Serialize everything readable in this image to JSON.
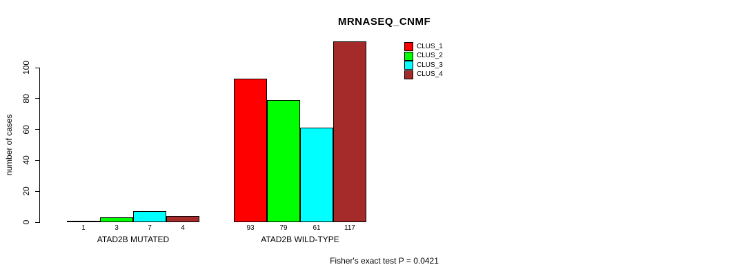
{
  "title": "MRNASEQ_CNMF",
  "subtitle": "Fisher's exact test P = 0.0421",
  "ylabel": "number of cases",
  "chart_data": {
    "type": "bar",
    "title": "MRNASEQ_CNMF",
    "xlabel": "",
    "ylabel": "number of cases",
    "categories": [
      "ATAD2B MUTATED",
      "ATAD2B WILD-TYPE"
    ],
    "series": [
      {
        "name": "CLUS_1",
        "color": "#ff0000",
        "values": [
          1,
          93
        ]
      },
      {
        "name": "CLUS_2",
        "color": "#00ff00",
        "values": [
          3,
          79
        ]
      },
      {
        "name": "CLUS_3",
        "color": "#00ffff",
        "values": [
          7,
          61
        ]
      },
      {
        "name": "CLUS_4",
        "color": "#a52a2a",
        "values": [
          4,
          117
        ]
      }
    ],
    "yticks": [
      0,
      20,
      40,
      60,
      80,
      100
    ],
    "ylim": [
      0,
      100
    ],
    "grid": false,
    "bar_value_labels": true,
    "legend_position": "inside-top-right",
    "annotation": "Fisher's exact test P = 0.0421"
  }
}
